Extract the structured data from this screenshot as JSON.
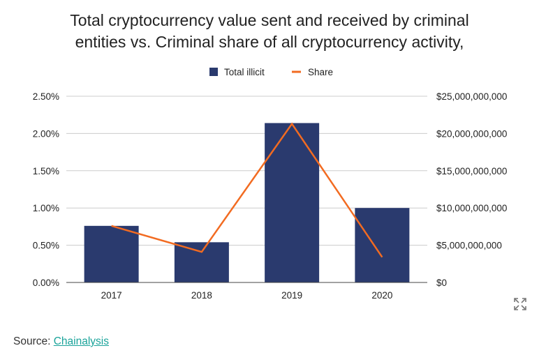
{
  "chart_data": {
    "type": "bar",
    "title_lines": [
      "Total cryptocurrency value sent and received by criminal",
      "entities vs. Criminal share of all cryptocurrency activity,"
    ],
    "categories": [
      "2017",
      "2018",
      "2019",
      "2020"
    ],
    "series": [
      {
        "name": "Total illicit",
        "type": "bar",
        "axis": "right",
        "color": "#2a3a6e",
        "values": [
          7600000000,
          5400000000,
          21400000000,
          10000000000
        ]
      },
      {
        "name": "Share",
        "type": "line",
        "axis": "left",
        "color": "#f26b21",
        "values": [
          0.0076,
          0.0041,
          0.0213,
          0.0034
        ]
      }
    ],
    "y_left": {
      "ylim": [
        0,
        0.025
      ],
      "ticks": [
        "0.00%",
        "0.50%",
        "1.00%",
        "1.50%",
        "2.00%",
        "2.50%"
      ]
    },
    "y_right": {
      "ylim": [
        0,
        25000000000
      ],
      "ticks": [
        "$0",
        "$5,000,000,000",
        "$10,000,000,000",
        "$15,000,000,000",
        "$20,000,000,000",
        "$25,000,000,000"
      ]
    },
    "legend_position": "top-center",
    "grid": true
  },
  "icons": {
    "expand": "expand-icon"
  },
  "source": {
    "label": "Source: ",
    "link_text": "Chainalysis"
  }
}
